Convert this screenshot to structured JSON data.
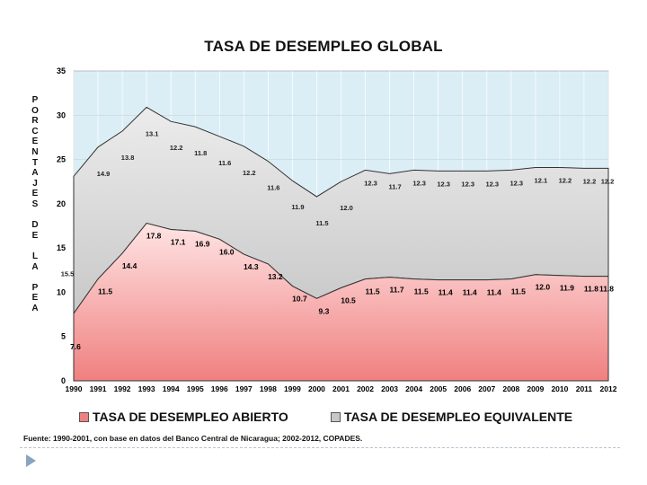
{
  "chart_data": {
    "type": "area",
    "title": "TASA DE DESEMPLEO GLOBAL",
    "ylabel_letters": [
      "P",
      "O",
      "R",
      "C",
      "E",
      "N",
      "T",
      "A",
      "J",
      "E",
      "S",
      "",
      "D",
      "E",
      "",
      "L",
      "A",
      "",
      "P",
      "E",
      "A"
    ],
    "ylim": [
      0,
      35
    ],
    "yticks": [
      "0",
      "5",
      "10",
      "15",
      "20",
      "25",
      "30",
      "35"
    ],
    "categories": [
      "1990",
      "1991",
      "1992",
      "1993",
      "1994",
      "1995",
      "1996",
      "1997",
      "1998",
      "1999",
      "2000",
      "2001",
      "2002",
      "2003",
      "2004",
      "2005",
      "2006",
      "2007",
      "2008",
      "2009",
      "2010",
      "2011",
      "2012"
    ],
    "series": [
      {
        "name": "TASA DE DESEMPLEO ABIERTO",
        "color": "#f08080",
        "values": [
          7.6,
          11.5,
          14.4,
          17.8,
          17.1,
          16.9,
          16.0,
          14.3,
          13.2,
          10.7,
          9.3,
          10.5,
          11.5,
          11.7,
          11.5,
          11.4,
          11.4,
          11.4,
          11.5,
          12.0,
          11.9,
          11.8,
          11.8
        ],
        "labels": [
          "7.6",
          "11.5",
          "14.4",
          "17.8",
          "17.1",
          "16.9",
          "16.0",
          "14.3",
          "13.2",
          "10.7",
          "9.3",
          "10.5",
          "11.5",
          "11.7",
          "11.5",
          "11.4",
          "11.4",
          "11.4",
          "11.5",
          "12.0",
          "11.9",
          "11.8",
          "11.8"
        ]
      },
      {
        "name": "TASA DE DESEMPLEO EQUIVALENTE",
        "color": "#c8c8c8",
        "values": [
          15.5,
          14.9,
          13.8,
          13.1,
          12.2,
          11.8,
          11.6,
          12.2,
          11.6,
          11.9,
          11.5,
          12.0,
          12.3,
          11.7,
          12.3,
          12.3,
          12.3,
          12.3,
          12.3,
          12.1,
          12.2,
          12.2,
          12.2
        ],
        "labels": [
          "15.5",
          "14.9",
          "13.8",
          "13.1",
          "12.2",
          "11.8",
          "11.6",
          "12.2",
          "11.6",
          "11.9",
          "11.5",
          "12.0",
          "12.3",
          "11.7",
          "12.3",
          "12.3",
          "12.3",
          "12.3",
          "12.3",
          "12.1",
          "12.2",
          "12.2",
          "12.2"
        ]
      }
    ],
    "legend_position": "bottom",
    "grid": true
  },
  "source": "Fuente: 1990-2001, con base en datos del Banco Central de Nicaragua; 2002-2012, COPADES.",
  "colors": {
    "background_plot": "#dceef5",
    "open_rate_fill": "#f08080",
    "equivalent_fill": "#c8c8c8",
    "outline": "#333333"
  }
}
